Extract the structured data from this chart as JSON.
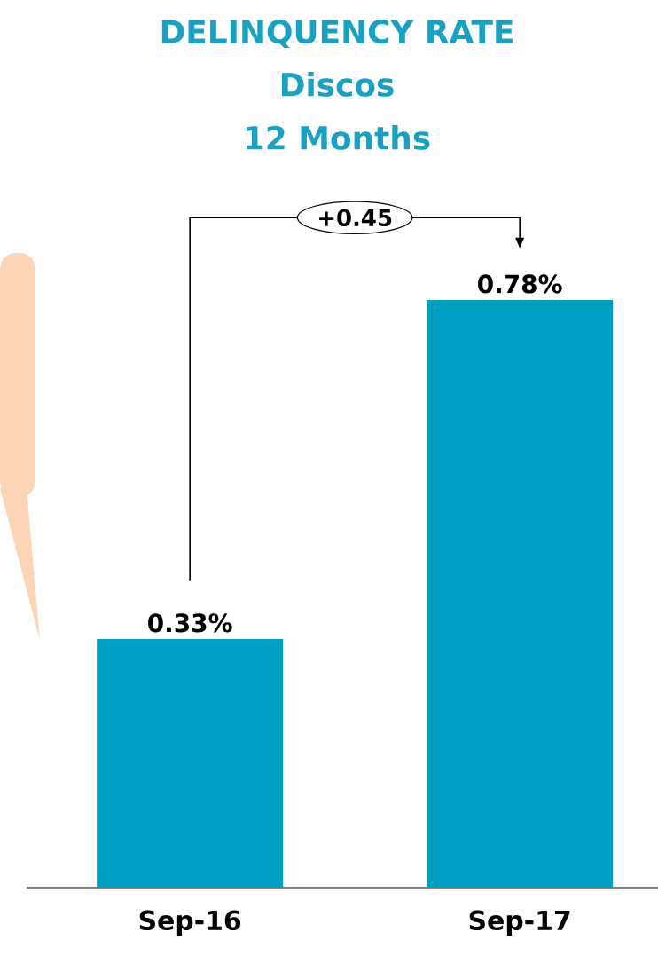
{
  "chart_data": {
    "type": "bar",
    "title": "DELINQUENCY RATE",
    "subtitle": "Discos",
    "categories": [
      "Sep-16",
      "Sep-17"
    ],
    "values": [
      0.33,
      0.78
    ],
    "color": "#009fc2",
    "value_labels": [
      "0.33%",
      "0.78%"
    ],
    "annotations": [
      "12 Months",
      "+0.45"
    ]
  }
}
